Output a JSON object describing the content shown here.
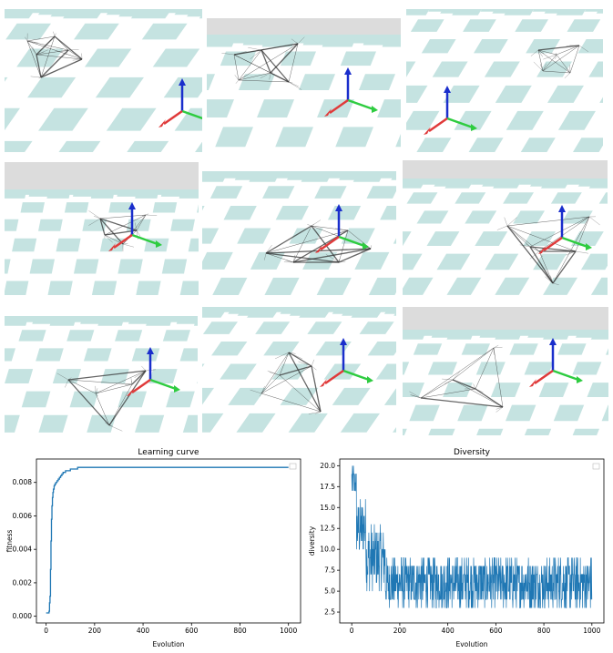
{
  "figure": {
    "panels_count": 9,
    "colors": {
      "floor_tile": "#c5e3e1",
      "sky": "#dcdcdc",
      "axis_x": "#e03a3a",
      "axis_y": "#2ecc40",
      "axis_z": "#1a2ecc",
      "structure": "#333333",
      "curve": "#1f77b4"
    }
  },
  "chart_data": [
    {
      "type": "line",
      "title": "Learning curve",
      "xlabel": "Evolution",
      "ylabel": "fitness",
      "xlim": [
        -40,
        1050
      ],
      "ylim": [
        -0.0004,
        0.0094
      ],
      "xticks": [
        "0",
        "200",
        "400",
        "600",
        "800",
        "1000"
      ],
      "xtick_values": [
        0,
        200,
        400,
        600,
        800,
        1000
      ],
      "yticks": [
        "0.000",
        "0.002",
        "0.004",
        "0.006",
        "0.008"
      ],
      "ytick_values": [
        0,
        0.002,
        0.004,
        0.006,
        0.008
      ],
      "legend": "empty, top-right",
      "series": [
        {
          "x": [
            0,
            8,
            12,
            14,
            16,
            18,
            20,
            22,
            24,
            26,
            28,
            30,
            33,
            36,
            40,
            45,
            50,
            55,
            60,
            65,
            70,
            80,
            90,
            100,
            110,
            120,
            130,
            140,
            150,
            200,
            400,
            600,
            800,
            1000
          ],
          "y": [
            0.0002,
            0.0002,
            0.0003,
            0.0008,
            0.0012,
            0.0028,
            0.0045,
            0.0058,
            0.0066,
            0.0071,
            0.0074,
            0.0076,
            0.0078,
            0.0079,
            0.008,
            0.0081,
            0.0082,
            0.0083,
            0.0084,
            0.0085,
            0.0086,
            0.0087,
            0.0087,
            0.0088,
            0.0088,
            0.0088,
            0.0089,
            0.0089,
            0.0089,
            0.0089,
            0.0089,
            0.0089,
            0.0089,
            0.0089
          ]
        }
      ]
    },
    {
      "type": "line",
      "title": "Diversity",
      "xlabel": "Evolution",
      "ylabel": "diversity",
      "xlim": [
        -50,
        1050
      ],
      "ylim": [
        1.2,
        20.8
      ],
      "xticks": [
        "0",
        "200",
        "400",
        "600",
        "800",
        "1000"
      ],
      "xtick_values": [
        0,
        200,
        400,
        600,
        800,
        1000
      ],
      "yticks": [
        "2.5",
        "5.0",
        "7.5",
        "10.0",
        "12.5",
        "15.0",
        "17.5",
        "20.0"
      ],
      "ytick_values": [
        2.5,
        5,
        7.5,
        10,
        12.5,
        15,
        17.5,
        20
      ],
      "legend": "empty, top-right",
      "noisy_series": {
        "x_start": 0,
        "x_end": 1000,
        "n_points": 1000,
        "segments": [
          {
            "from": 0,
            "to": 20,
            "min": 16,
            "max": 20
          },
          {
            "from": 20,
            "to": 60,
            "min": 9,
            "max": 16
          },
          {
            "from": 60,
            "to": 140,
            "min": 5,
            "max": 13
          },
          {
            "from": 140,
            "to": 1000,
            "min": 3,
            "max": 9
          }
        ]
      }
    }
  ]
}
